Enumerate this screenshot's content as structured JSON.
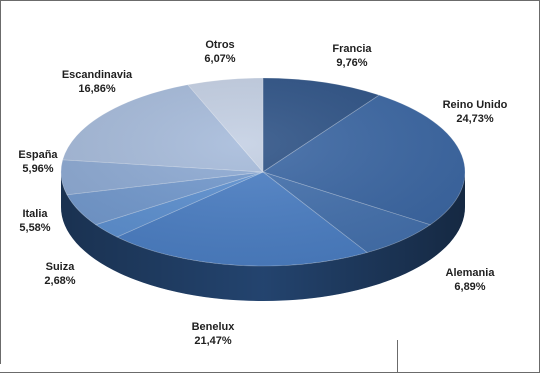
{
  "chart_data": {
    "type": "pie",
    "style": "3d",
    "title": "",
    "slices": [
      {
        "name": "Francia",
        "value": 9.76,
        "label": "9,76%",
        "color": "#2c5185"
      },
      {
        "name": "Reino Unido",
        "value": 24.73,
        "label": "24,73%",
        "color": "#3a66a3"
      },
      {
        "name": "Alemania",
        "value": 6.89,
        "label": "6,89%",
        "color": "#4370ad"
      },
      {
        "name": "Benelux",
        "value": 21.47,
        "label": "21,47%",
        "color": "#4a7ec4"
      },
      {
        "name": "Suiza",
        "value": 2.68,
        "label": "2,68%",
        "color": "#5b8fd0"
      },
      {
        "name": "Italia",
        "value": 5.58,
        "label": "5,58%",
        "color": "#7198cd"
      },
      {
        "name": "España",
        "value": 5.96,
        "label": "5,96%",
        "color": "#8ca9d3"
      },
      {
        "name": "Escandinavia",
        "value": 16.86,
        "label": "16,86%",
        "color": "#a5bada"
      },
      {
        "name": "Otros",
        "value": 6.07,
        "label": "6,07%",
        "color": "#c3cfe3"
      }
    ]
  }
}
